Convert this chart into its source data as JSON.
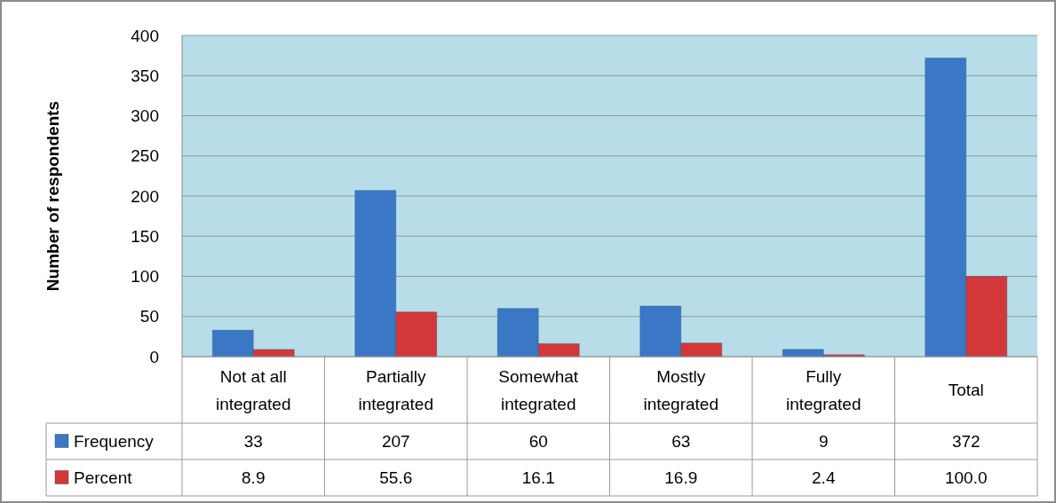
{
  "chart_data": {
    "type": "bar",
    "ylabel": "Number of respondents",
    "categories": [
      "Not at all integrated",
      "Partially integrated",
      "Somewhat integrated",
      "Mostly integrated",
      "Fully integrated",
      "Total"
    ],
    "series": [
      {
        "name": "Frequency",
        "color": "#3a78c6",
        "values": [
          33,
          207,
          60,
          63,
          9,
          372
        ],
        "value_labels": [
          "33",
          "207",
          "60",
          "63",
          "9",
          "372"
        ]
      },
      {
        "name": "Percent",
        "color": "#d2383a",
        "values": [
          8.9,
          55.6,
          16.1,
          16.9,
          2.4,
          100.0
        ],
        "value_labels": [
          "8.9",
          "55.6",
          "16.1",
          "16.9",
          "2.4",
          "100.0"
        ]
      }
    ],
    "ylim": [
      0,
      400
    ],
    "yticks": [
      0,
      50,
      100,
      150,
      200,
      250,
      300,
      350,
      400
    ],
    "grid": "y",
    "legend": "bottom left"
  }
}
